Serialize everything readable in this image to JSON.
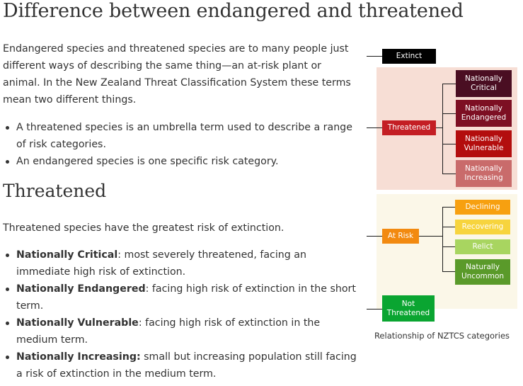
{
  "heading_main": "Difference between endangered and threatened",
  "intro": "Endangered species and threatened species are to many people just different ways of describing the same thing—an at-risk plant or animal. In the New Zealand Threat Classification System these terms mean two different things.",
  "intro_bullets": [
    "A threatened species is an umbrella term used to describe a range of risk categories.",
    "An endangered species is one specific risk category."
  ],
  "heading_threatened": "Threatened",
  "threatened_intro": "Threatened species have the greatest risk of extinction.",
  "threatened_bullets": [
    {
      "term": "Nationally Critical",
      "text": ": most severely threatened, facing an immediate high risk of extinction."
    },
    {
      "term": "Nationally Endangered",
      "text": ": facing high risk of extinction in the short term."
    },
    {
      "term": "Nationally Vulnerable",
      "text": ": facing high risk of extinction in the medium term."
    },
    {
      "term": "Nationally Increasing:",
      "text": " small but increasing population still facing a risk of extinction in the medium term."
    }
  ],
  "diagram": {
    "caption": "Relationship of NZTCS categories",
    "extinct": "Extinct",
    "threatened": "Threatened",
    "threatened_children": [
      "Nationally Critical",
      "Nationally Endangered",
      "Nationally Vulnerable",
      "Nationally Increasing"
    ],
    "at_risk": "At Risk",
    "at_risk_children": [
      "Declining",
      "Recovering",
      "Relict",
      "Naturally Uncommon"
    ],
    "not_threatened": "Not Threatened",
    "colors": {
      "extinct": "#000000",
      "threatened": "#c41e24",
      "nationally_critical": "#4a0e22",
      "nationally_endangered": "#7d0f23",
      "nationally_vulnerable": "#b30e0e",
      "nationally_increasing": "#c96b6b",
      "at_risk": "#f28a10",
      "declining": "#f7a010",
      "recovering": "#f7d43e",
      "relict": "#a8d560",
      "naturally_uncommon": "#5a9a2a",
      "not_threatened": "#0aa531",
      "threatened_panel": "#f7ded5",
      "at_risk_panel": "#fbf7e8"
    }
  }
}
